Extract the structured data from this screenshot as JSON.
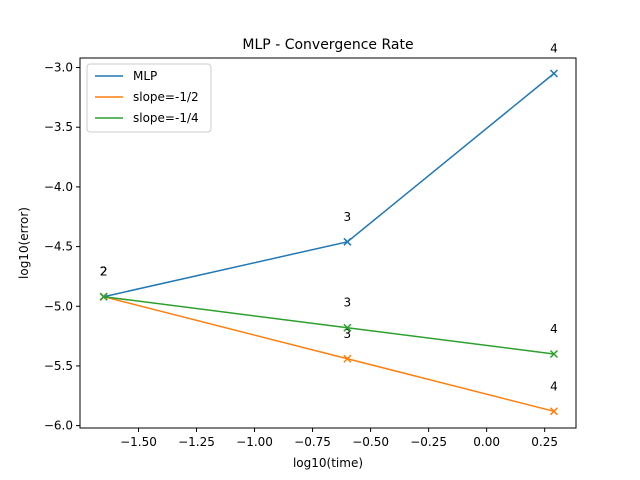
{
  "chart_data": {
    "type": "line",
    "title": "MLP - Convergence Rate",
    "xlabel": "log10(time)",
    "ylabel": "log10(error)",
    "xlim": [
      -1.752,
      0.385
    ],
    "ylim": [
      -6.02,
      -2.92
    ],
    "xticks": [
      -1.5,
      -1.25,
      -1.0,
      -0.75,
      -0.5,
      -0.25,
      0.0,
      0.25
    ],
    "xtick_labels": [
      "−1.50",
      "−1.25",
      "−1.00",
      "−0.75",
      "−0.50",
      "−0.25",
      "0.00",
      "0.25"
    ],
    "yticks": [
      -6.0,
      -5.5,
      -5.0,
      -4.5,
      -4.0,
      -3.5,
      -3.0
    ],
    "ytick_labels": [
      "−6.0",
      "−5.5",
      "−5.0",
      "−4.5",
      "−4.0",
      "−3.5",
      "−3.0"
    ],
    "grid": false,
    "legend_position": "top-left",
    "series": [
      {
        "name": "MLP",
        "color": "#1f77b4",
        "marker": "x",
        "points": [
          {
            "x": -1.65,
            "y": -4.92,
            "label": "2"
          },
          {
            "x": -0.6,
            "y": -4.46,
            "label": "3"
          },
          {
            "x": 0.29,
            "y": -3.05,
            "label": "4"
          }
        ]
      },
      {
        "name": "slope=-1/2",
        "color": "#ff7f0e",
        "marker": "x",
        "points": [
          {
            "x": -1.65,
            "y": -4.92,
            "label": "2"
          },
          {
            "x": -0.6,
            "y": -5.44,
            "label": "3"
          },
          {
            "x": 0.29,
            "y": -5.88,
            "label": "4"
          }
        ]
      },
      {
        "name": "slope=-1/4",
        "color": "#2ca02c",
        "marker": "x",
        "points": [
          {
            "x": -1.65,
            "y": -4.92,
            "label": "2"
          },
          {
            "x": -0.6,
            "y": -5.18,
            "label": "3"
          },
          {
            "x": 0.29,
            "y": -5.4,
            "label": "4"
          }
        ]
      }
    ]
  }
}
